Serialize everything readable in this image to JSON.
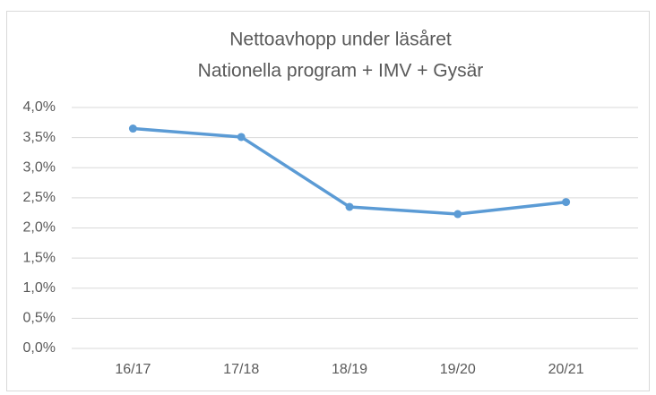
{
  "chart_data": {
    "type": "line",
    "title": "Nettoavhopp under läsåret",
    "subtitle": "Nationella program + IMV + Gysär",
    "categories": [
      "16/17",
      "17/18",
      "18/19",
      "19/20",
      "20/21"
    ],
    "series": [
      {
        "name": "Nettoavhopp",
        "color": "#5b9bd5",
        "values": [
          3.65,
          3.51,
          2.35,
          2.23,
          2.43
        ]
      }
    ],
    "ylim": [
      0,
      4
    ],
    "yticks": [
      {
        "value": 0,
        "label": "0,0%"
      },
      {
        "value": 0.5,
        "label": "0,5%"
      },
      {
        "value": 1,
        "label": "1,0%"
      },
      {
        "value": 1.5,
        "label": "1,5%"
      },
      {
        "value": 2,
        "label": "2,0%"
      },
      {
        "value": 2.5,
        "label": "2,5%"
      },
      {
        "value": 3,
        "label": "3,0%"
      },
      {
        "value": 3.5,
        "label": "3,5%"
      },
      {
        "value": 4,
        "label": "4,0%"
      }
    ],
    "grid": true,
    "legend": false
  }
}
